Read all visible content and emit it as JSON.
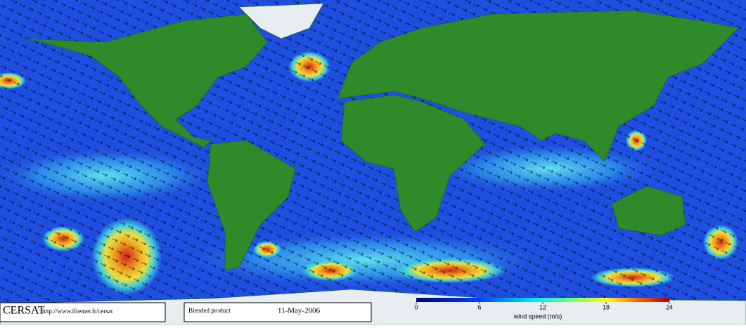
{
  "footer": {
    "logo": "CERSAT",
    "url": "http://www.ifremer.fr/cersat",
    "product": "Blended product",
    "date": "11-May-2006"
  },
  "colorbar": {
    "label": "wind speed (m/s)",
    "range": [
      0,
      24
    ],
    "ticks": [
      0,
      6,
      12,
      18,
      24
    ]
  }
}
